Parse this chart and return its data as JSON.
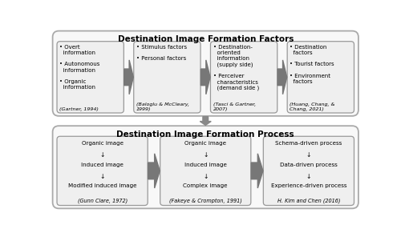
{
  "title_top": "Destination Image Formation Factors",
  "title_bottom": "Destination Image Formation Process",
  "bg_color": "#ffffff",
  "text_color": "#000000",
  "top_boxes": [
    {
      "bullets": [
        "• Overt\n  information",
        "• Autonomous\n  information",
        "• Organic\n  information"
      ],
      "citation": "(Gartner, 1994)"
    },
    {
      "bullets": [
        "• Stimulus factors",
        "• Personal factors"
      ],
      "citation": "(Baloglu & McCleary,\n1999)"
    },
    {
      "bullets": [
        "• Destination-\n  oriented\n  information\n  (supply side)",
        "• Perceiver\n  characteristics\n  (demand side )"
      ],
      "citation": "(Tasci & Gartner,\n2007)"
    },
    {
      "bullets": [
        "• Destination\n  factors",
        "• Tourist factors",
        "• Environment\n  factors"
      ],
      "citation": "(Huang, Chang, &\nChang, 2021)"
    }
  ],
  "bottom_boxes": [
    {
      "lines": [
        "Organic image",
        "↓",
        "Induced image",
        "↓",
        "Modified induced image"
      ],
      "citation": "(Gunn Clare, 1972)"
    },
    {
      "lines": [
        "Organic image",
        "↓",
        "Induced image",
        "↓",
        "Complex image"
      ],
      "citation": "(Fakeye & Crompton, 1991)"
    },
    {
      "lines": [
        "Schema-driven process",
        "↓",
        "Data-driven process",
        "↓",
        "Experience-driven process"
      ],
      "citation": "H. Kim and Chen (2016)"
    }
  ]
}
